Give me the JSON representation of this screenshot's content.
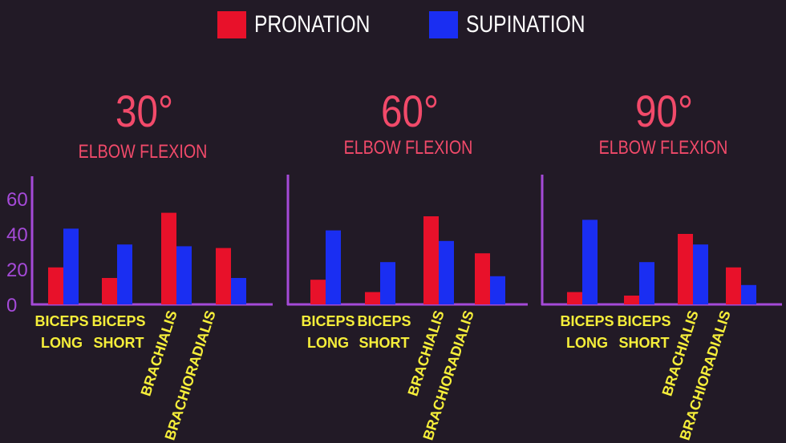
{
  "legend": {
    "items": [
      {
        "label": "PRONATION",
        "color": "#e8112a"
      },
      {
        "label": "SUPINATION",
        "color": "#1a2ef2"
      }
    ]
  },
  "panels": [
    {
      "angle": "30°",
      "subtitle": "ELBOW FLEXION"
    },
    {
      "angle": "60°",
      "subtitle": "ELBOW FLEXION"
    },
    {
      "angle": "90°",
      "subtitle": "ELBOW FLEXION"
    }
  ],
  "chart_data": [
    {
      "type": "bar",
      "title": "30° ELBOW FLEXION",
      "categories": [
        "BICEPS LONG",
        "BICEPS SHORT",
        "BRACHIALIS",
        "BRACHIORADIALIS"
      ],
      "series": [
        {
          "name": "PRONATION",
          "values": [
            21,
            15,
            52,
            32
          ]
        },
        {
          "name": "SUPINATION",
          "values": [
            43,
            34,
            33,
            15
          ]
        }
      ],
      "yticks": [
        0,
        20,
        40,
        60
      ],
      "ylim": [
        0,
        70
      ],
      "grid": false
    },
    {
      "type": "bar",
      "title": "60° ELBOW FLEXION",
      "categories": [
        "BICEPS LONG",
        "BICEPS SHORT",
        "BRACHIALIS",
        "BRACHIORADIALIS"
      ],
      "series": [
        {
          "name": "PRONATION",
          "values": [
            14,
            7,
            50,
            29
          ]
        },
        {
          "name": "SUPINATION",
          "values": [
            42,
            24,
            36,
            16
          ]
        }
      ],
      "ylim": [
        0,
        70
      ],
      "grid": false
    },
    {
      "type": "bar",
      "title": "90° ELBOW FLEXION",
      "categories": [
        "BICEPS LONG",
        "BICEPS SHORT",
        "BRACHIALIS",
        "BRACHIORADIALIS"
      ],
      "series": [
        {
          "name": "PRONATION",
          "values": [
            7,
            5,
            40,
            21
          ]
        },
        {
          "name": "SUPINATION",
          "values": [
            48,
            24,
            34,
            11
          ]
        }
      ],
      "ylim": [
        0,
        70
      ],
      "grid": false
    }
  ]
}
